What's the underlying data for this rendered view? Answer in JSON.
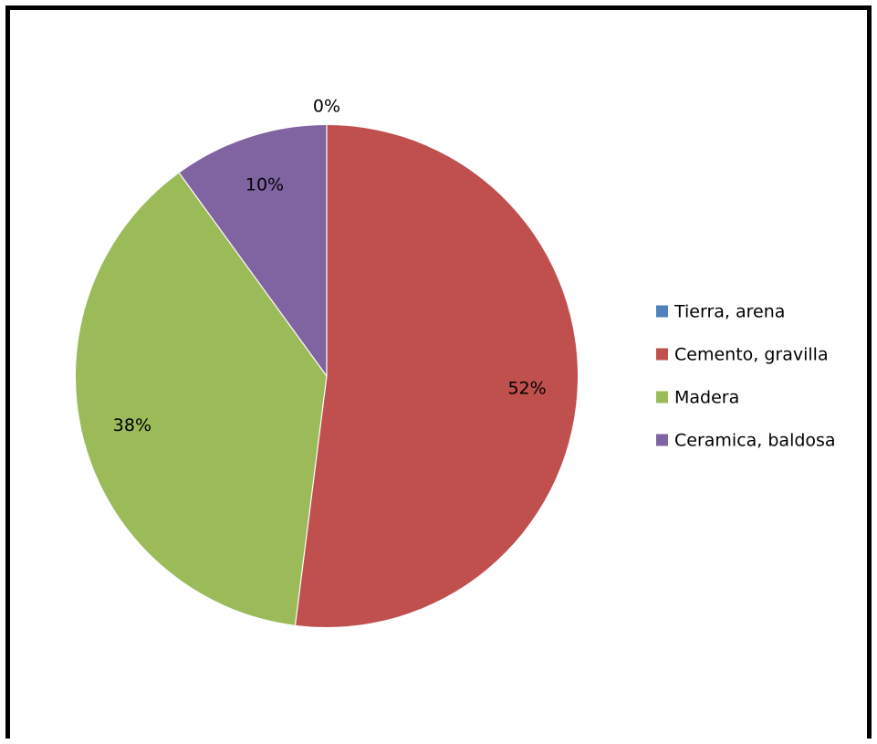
{
  "chart_data": {
    "type": "pie",
    "title": "",
    "legend_position": "right",
    "slices": [
      {
        "label": "Tierra, arena",
        "value": 0,
        "display": "0%",
        "color": "#4F81BD"
      },
      {
        "label": "Cemento, gravilla",
        "value": 52,
        "display": "52%",
        "color": "#C0504D"
      },
      {
        "label": "Madera",
        "value": 38,
        "display": "38%",
        "color": "#9BBB59"
      },
      {
        "label": "Ceramica, baldosa",
        "value": 10,
        "display": "10%",
        "color": "#8064A2"
      }
    ]
  }
}
